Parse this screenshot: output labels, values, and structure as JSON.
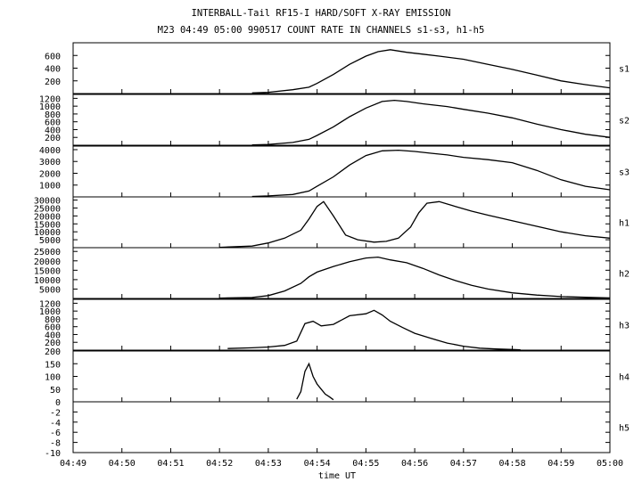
{
  "header": {
    "title": "INTERBALL-Tail RF15-I HARD/SOFT X-RAY EMISSION",
    "subtitle": "M23  04:49 05:00 990517  COUNT RATE IN CHANNELS s1-s3, h1-h5"
  },
  "chart_data": {
    "type": "line",
    "title": "INTERBALL-Tail RF15-I HARD/SOFT X-RAY EMISSION",
    "subtitle": "M23  04:49 05:00 990517  COUNT RATE IN CHANNELS s1-s3, h1-h5",
    "xlabel": "time UT",
    "x_ticks": [
      "04:49",
      "04:50",
      "04:51",
      "04:52",
      "04:53",
      "04:54",
      "04:55",
      "04:56",
      "04:57",
      "04:58",
      "04:59",
      "05:00"
    ],
    "xlim": [
      "04:49",
      "05:00"
    ],
    "grid": false,
    "panels": [
      {
        "name": "s1",
        "ylim": [
          0,
          800
        ],
        "y_ticks": [
          "200",
          "400",
          "600"
        ],
        "y_tick_values": [
          200,
          400,
          600
        ],
        "x": [
          "04:52:40",
          "04:53:00",
          "04:53:30",
          "04:53:50",
          "04:54:00",
          "04:54:20",
          "04:54:40",
          "04:55:00",
          "04:55:15",
          "04:55:30",
          "04:55:50",
          "04:56:10",
          "04:56:30",
          "04:57:00",
          "04:57:30",
          "04:58:00",
          "04:58:30",
          "04:59:00",
          "04:59:30",
          "05:00:00"
        ],
        "values": [
          10,
          20,
          60,
          100,
          160,
          300,
          460,
          590,
          660,
          690,
          650,
          620,
          590,
          540,
          460,
          380,
          290,
          200,
          140,
          90
        ]
      },
      {
        "name": "s2",
        "ylim": [
          0,
          1300
        ],
        "y_ticks": [
          "200",
          "400",
          "600",
          "800",
          "1000",
          "1200"
        ],
        "y_tick_values": [
          200,
          400,
          600,
          800,
          1000,
          1200
        ],
        "x": [
          "04:52:40",
          "04:53:00",
          "04:53:30",
          "04:53:50",
          "04:54:00",
          "04:54:20",
          "04:54:40",
          "04:55:00",
          "04:55:20",
          "04:55:35",
          "04:55:50",
          "04:56:10",
          "04:56:40",
          "04:57:00",
          "04:57:30",
          "04:58:00",
          "04:58:30",
          "04:59:00",
          "04:59:30",
          "05:00:00"
        ],
        "values": [
          10,
          20,
          70,
          150,
          250,
          470,
          730,
          950,
          1120,
          1150,
          1120,
          1060,
          990,
          920,
          820,
          700,
          540,
          400,
          280,
          200
        ]
      },
      {
        "name": "s3",
        "ylim": [
          0,
          4300
        ],
        "y_ticks": [
          "1000",
          "2000",
          "3000",
          "4000"
        ],
        "y_tick_values": [
          1000,
          2000,
          3000,
          4000
        ],
        "x": [
          "04:52:40",
          "04:53:00",
          "04:53:30",
          "04:53:50",
          "04:54:00",
          "04:54:20",
          "04:54:40",
          "04:55:00",
          "04:55:20",
          "04:55:40",
          "04:56:00",
          "04:56:20",
          "04:56:40",
          "04:57:00",
          "04:57:30",
          "04:58:00",
          "04:58:30",
          "04:59:00",
          "04:59:30",
          "05:00:00"
        ],
        "values": [
          40,
          80,
          200,
          500,
          900,
          1700,
          2700,
          3500,
          3900,
          3950,
          3850,
          3700,
          3550,
          3350,
          3150,
          2900,
          2250,
          1450,
          900,
          600
        ]
      },
      {
        "name": "h1",
        "ylim": [
          0,
          32000
        ],
        "y_ticks": [
          "5000",
          "10000",
          "15000",
          "20000",
          "25000",
          "30000"
        ],
        "y_tick_values": [
          5000,
          10000,
          15000,
          20000,
          25000,
          30000
        ],
        "x": [
          "04:52:00",
          "04:52:40",
          "04:53:00",
          "04:53:20",
          "04:53:40",
          "04:53:50",
          "04:54:00",
          "04:54:08",
          "04:54:20",
          "04:54:35",
          "04:54:50",
          "04:55:10",
          "04:55:25",
          "04:55:40",
          "04:55:55",
          "04:56:05",
          "04:56:15",
          "04:56:30",
          "04:56:50",
          "04:57:10",
          "04:57:30",
          "04:58:00",
          "04:58:30",
          "04:59:00",
          "04:59:30",
          "05:00:00"
        ],
        "values": [
          200,
          1000,
          3000,
          6000,
          11000,
          18000,
          26000,
          29000,
          20000,
          8000,
          5000,
          3500,
          4000,
          6000,
          13000,
          22000,
          28000,
          29000,
          26000,
          23000,
          20500,
          17000,
          13500,
          10000,
          7500,
          6000
        ]
      },
      {
        "name": "h2",
        "ylim": [
          0,
          27000
        ],
        "y_ticks": [
          "5000",
          "10000",
          "15000",
          "20000",
          "25000"
        ],
        "y_tick_values": [
          5000,
          10000,
          15000,
          20000,
          25000
        ],
        "x": [
          "04:52:00",
          "04:52:40",
          "04:53:00",
          "04:53:20",
          "04:53:40",
          "04:53:50",
          "04:54:00",
          "04:54:20",
          "04:54:40",
          "04:55:00",
          "04:55:15",
          "04:55:30",
          "04:55:50",
          "04:56:10",
          "04:56:30",
          "04:56:50",
          "04:57:10",
          "04:57:30",
          "04:58:00",
          "04:58:30",
          "04:59:00",
          "04:59:30",
          "05:00:00"
        ],
        "values": [
          200,
          500,
          1500,
          4000,
          8000,
          11500,
          14000,
          17000,
          19500,
          21500,
          22000,
          20500,
          19000,
          16000,
          12500,
          9500,
          7000,
          5000,
          3000,
          1800,
          1000,
          600,
          300
        ]
      },
      {
        "name": "h3",
        "ylim": [
          0,
          1300
        ],
        "y_ticks": [
          "200",
          "400",
          "600",
          "800",
          "1000",
          "1200"
        ],
        "y_tick_values": [
          200,
          400,
          600,
          800,
          1000,
          1200
        ],
        "x": [
          "04:52:10",
          "04:52:40",
          "04:53:00",
          "04:53:20",
          "04:53:35",
          "04:53:45",
          "04:53:55",
          "04:54:05",
          "04:54:20",
          "04:54:40",
          "04:55:00",
          "04:55:10",
          "04:55:20",
          "04:55:30",
          "04:55:45",
          "04:56:00",
          "04:56:20",
          "04:56:40",
          "04:57:00",
          "04:57:20",
          "04:57:40",
          "04:58:00",
          "04:58:10"
        ],
        "values": [
          40,
          60,
          80,
          120,
          230,
          680,
          740,
          620,
          660,
          880,
          930,
          1020,
          900,
          740,
          580,
          430,
          300,
          180,
          100,
          50,
          30,
          15,
          10
        ]
      },
      {
        "name": "h4",
        "ylim": [
          0,
          200
        ],
        "y_ticks": [
          "50",
          "100",
          "150",
          "200"
        ],
        "y_tick_values": [
          50,
          100,
          150,
          200
        ],
        "x": [
          "04:53:35",
          "04:53:40",
          "04:53:45",
          "04:53:50",
          "04:53:55",
          "04:54:00",
          "04:54:05",
          "04:54:10",
          "04:54:15",
          "04:54:20"
        ],
        "values": [
          10,
          40,
          120,
          150,
          100,
          70,
          50,
          30,
          20,
          8
        ]
      },
      {
        "name": "h5",
        "ylim": [
          -10,
          0
        ],
        "y_ticks": [
          "-10",
          "-8",
          "-6",
          "-4",
          "-2",
          "0"
        ],
        "y_tick_values": [
          -10,
          -8,
          -6,
          -4,
          -2,
          0
        ],
        "x": [],
        "values": []
      }
    ]
  }
}
